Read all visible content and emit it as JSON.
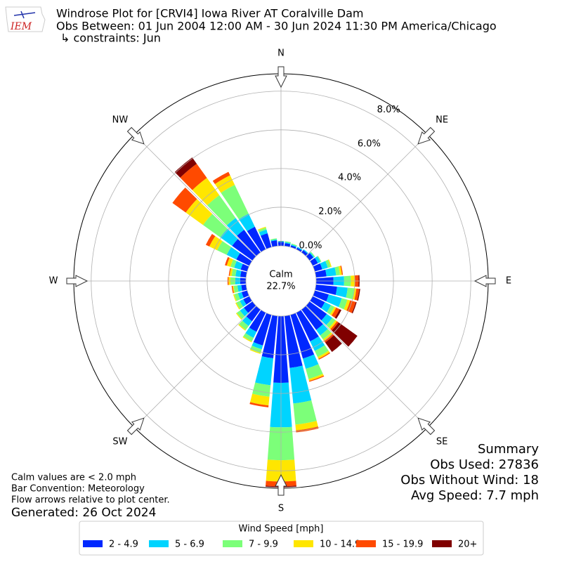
{
  "chart_data": {
    "type": "windrose",
    "title": "Windrose Plot for [CRVI4] Iowa River  AT Coralville Dam",
    "subtitle": "Obs Between: 01 Jun 2004 12:00 AM - 30 Jun 2024 11:30 PM America/Chicago",
    "constraints": "↳ constraints: Jun",
    "logo_text": "IEM",
    "x": [
      0,
      10,
      20,
      30,
      40,
      50,
      60,
      70,
      80,
      90,
      100,
      110,
      120,
      130,
      140,
      150,
      160,
      170,
      180,
      190,
      200,
      210,
      220,
      230,
      240,
      250,
      260,
      270,
      280,
      290,
      300,
      310,
      320,
      330,
      340,
      350
    ],
    "compass_labels": [
      "N",
      "NE",
      "E",
      "SE",
      "S",
      "SW",
      "W",
      "NW"
    ],
    "calm_label": "Calm",
    "calm_value": 22.7,
    "calm_value_label": "22.7%",
    "rlim": [
      0,
      8.9
    ],
    "rticks": [
      {
        "value": 0,
        "label": "0.0%"
      },
      {
        "value": 2,
        "label": "2.0%"
      },
      {
        "value": 4,
        "label": "4.0%"
      },
      {
        "value": 6,
        "label": "6.0%"
      },
      {
        "value": 8,
        "label": "8.0%"
      }
    ],
    "legend_title": "Wind Speed [mph]",
    "series": [
      {
        "name": "2 - 4.9",
        "color": "#0028ff",
        "values": [
          0.2,
          0.15,
          0.1,
          0.1,
          0.15,
          0.25,
          0.3,
          0.4,
          0.55,
          0.9,
          1.1,
          0.75,
          0.7,
          1.1,
          1.3,
          1.65,
          2.35,
          2.7,
          3.45,
          2.2,
          1.65,
          1.1,
          0.75,
          0.55,
          0.35,
          0.3,
          0.25,
          0.3,
          0.3,
          0.35,
          0.75,
          1.3,
          1.45,
          1.3,
          0.75,
          0.3
        ]
      },
      {
        "name": "5 - 6.9",
        "color": "#00d4ff",
        "values": [
          0.05,
          0.05,
          0.05,
          0.05,
          0.05,
          0.05,
          0.15,
          0.3,
          0.5,
          0.55,
          0.55,
          0.7,
          0.35,
          0.35,
          0.35,
          0.55,
          0.55,
          1.85,
          2.3,
          1.4,
          0.2,
          0.35,
          0.3,
          0.25,
          0.2,
          0.2,
          0.2,
          0.25,
          0.25,
          0.35,
          0.55,
          0.75,
          0.75,
          0.75,
          0.2,
          0.05
        ]
      },
      {
        "name": "7 - 9.9",
        "color": "#7cff79",
        "values": [
          0,
          0.05,
          0.05,
          0,
          0,
          0.05,
          0.05,
          0.15,
          0.2,
          0.35,
          0.35,
          0.3,
          0.2,
          0.2,
          0.25,
          0.35,
          0.55,
          1.1,
          1.7,
          0.6,
          0.2,
          0.2,
          0.25,
          0.2,
          0.2,
          0.2,
          0.2,
          0.25,
          0.2,
          0.2,
          0.55,
          1.1,
          1.45,
          1.65,
          0.1,
          0.05
        ]
      },
      {
        "name": "10 - 14.9",
        "color": "#ffe600",
        "values": [
          0,
          0,
          0,
          0,
          0,
          0,
          0,
          0.05,
          0.1,
          0.2,
          0.1,
          0.15,
          0.1,
          0.1,
          0.1,
          0.1,
          0.1,
          0.3,
          1.1,
          0.45,
          0.05,
          0.05,
          0.05,
          0.05,
          0.05,
          0.05,
          0.05,
          0.1,
          0.1,
          0.2,
          0.45,
          1.1,
          1.1,
          0.55,
          0.05,
          0
        ]
      },
      {
        "name": "15 - 19.9",
        "color": "#ff4a00",
        "values": [
          0,
          0,
          0,
          0,
          0,
          0,
          0,
          0,
          0.05,
          0.2,
          0.15,
          0.3,
          0.2,
          0.1,
          0.1,
          0.05,
          0.05,
          0.1,
          0.25,
          0.1,
          0,
          0,
          0,
          0,
          0,
          0,
          0.05,
          0.05,
          0.05,
          0.1,
          0.2,
          0.85,
          0.9,
          0.2,
          0,
          0
        ]
      },
      {
        "name": "20+",
        "color": "#800000",
        "values": [
          0,
          0,
          0,
          0,
          0,
          0,
          0,
          0,
          0,
          0.05,
          0.05,
          0.05,
          0.1,
          1.2,
          0.6,
          0,
          0,
          0,
          0.05,
          0,
          0,
          0,
          0,
          0,
          0,
          0,
          0,
          0,
          0,
          0,
          0,
          0,
          0.4,
          0,
          0,
          0
        ]
      }
    ],
    "summary": [
      "Summary",
      "Obs Used: 27836",
      "Obs Without Wind: 18",
      "Avg Speed: 7.7 mph"
    ],
    "notes": [
      "Calm values are < 2.0 mph",
      "Bar Convention: Meteorology",
      "Flow arrows relative to plot center."
    ],
    "generated": "Generated: 26 Oct 2024"
  }
}
